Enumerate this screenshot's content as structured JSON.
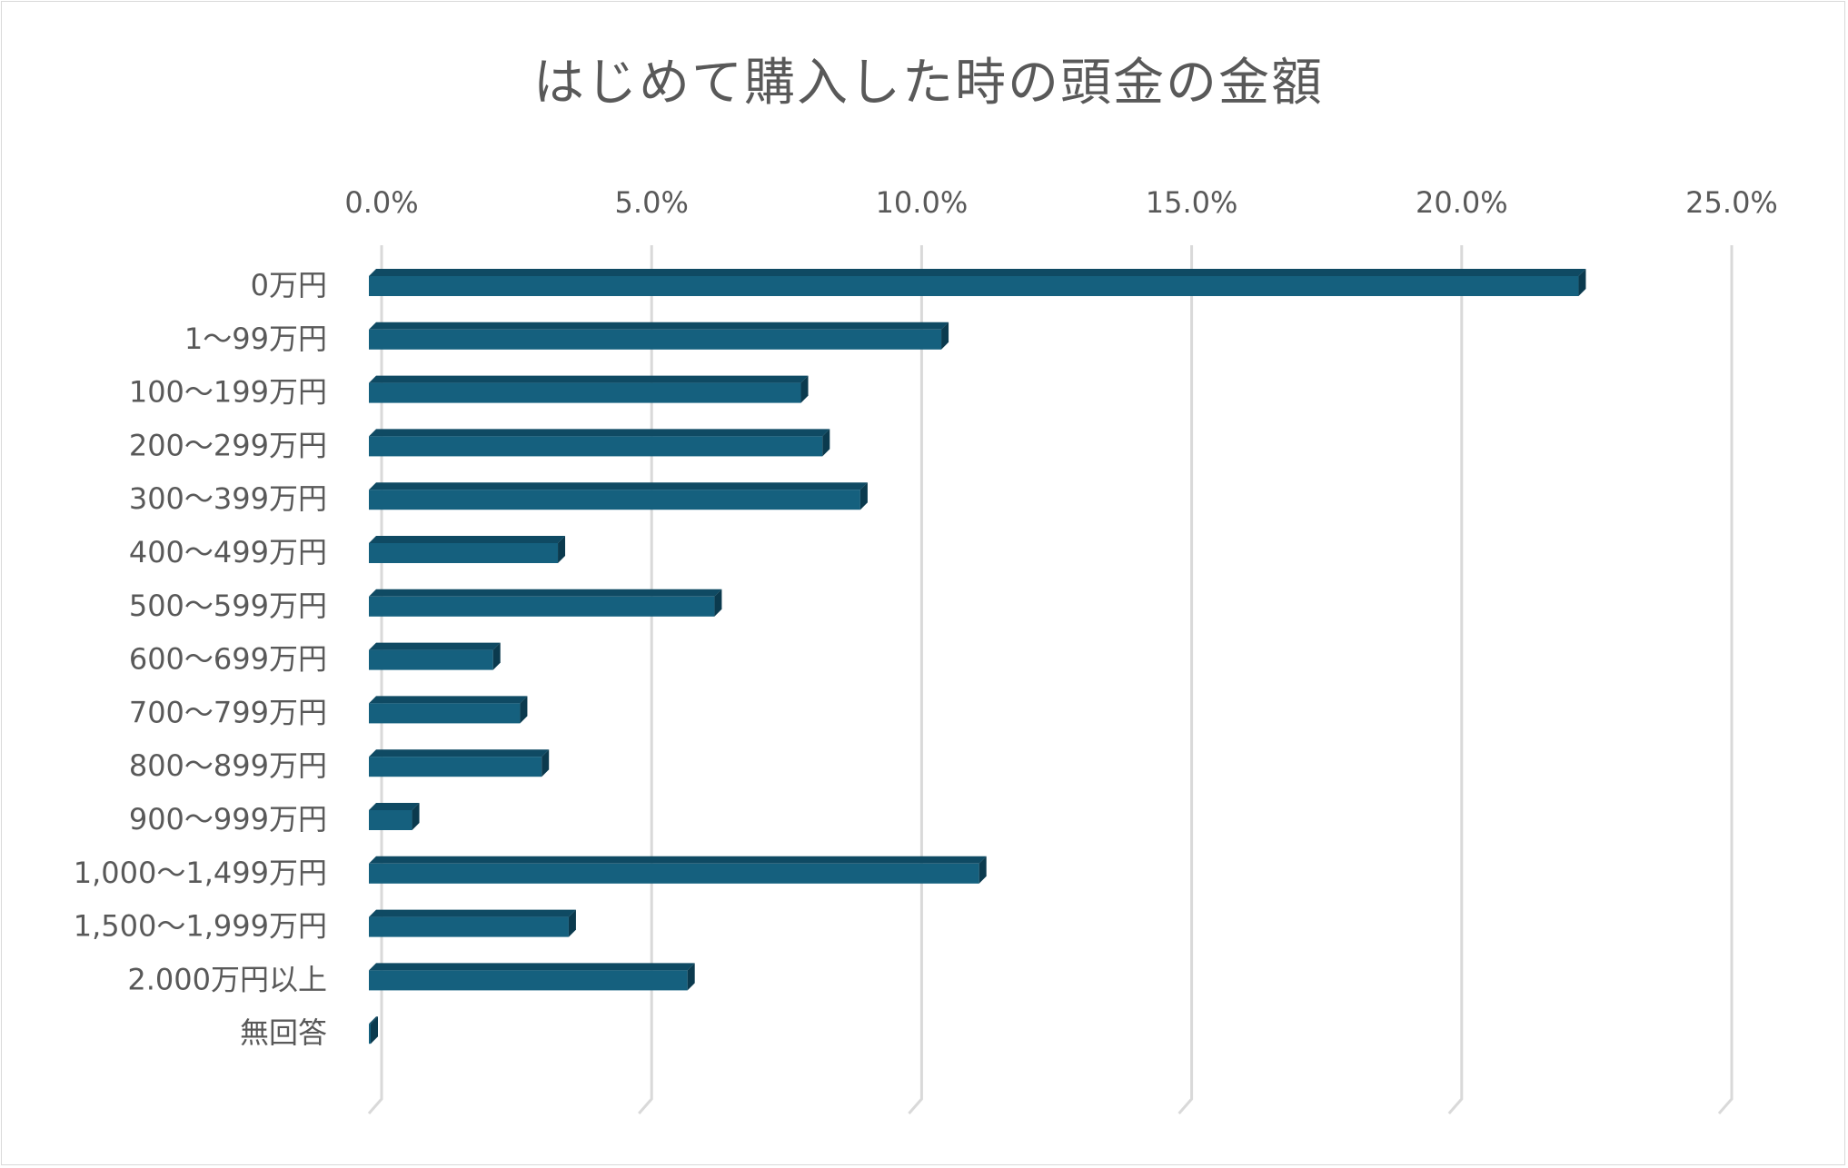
{
  "chart_data": {
    "type": "bar",
    "orientation": "horizontal",
    "title": "はじめて購入した時の頭金の金額",
    "xlabel": "",
    "ylabel": "",
    "categories": [
      "0万円",
      "1～99万円",
      "100～199万円",
      "200～299万円",
      "300～399万円",
      "400～499万円",
      "500～599万円",
      "600～699万円",
      "700～799万円",
      "800～899万円",
      "900～999万円",
      "1,000～1,499万円",
      "1,500～1,999万円",
      "2.000万円以上",
      "無回答"
    ],
    "values": [
      22.4,
      10.6,
      8.0,
      8.4,
      9.1,
      3.5,
      6.4,
      2.3,
      2.8,
      3.2,
      0.8,
      11.3,
      3.7,
      5.9,
      0.0
    ],
    "value_unit": "%",
    "xlim": [
      0,
      25
    ],
    "x_ticks": [
      "0.0%",
      "5.0%",
      "10.0%",
      "15.0%",
      "20.0%",
      "25.0%"
    ],
    "axis_position": "top",
    "grid": true,
    "legend": "none",
    "bar_color": "#15607e",
    "bar_top_color": "#0f4a63",
    "bar_side_color": "#0b3a4e",
    "grid_color": "#d9d9d9",
    "text_color": "#595959"
  }
}
